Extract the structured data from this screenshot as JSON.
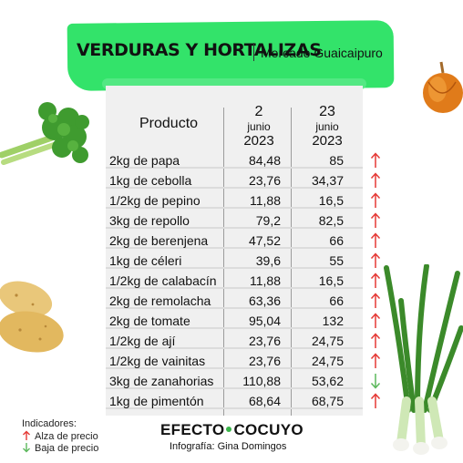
{
  "header": {
    "title": "VERDURAS Y HORTALIZAS",
    "subtitle": "Mercado Guaicaipuro"
  },
  "table": {
    "product_header": "Producto",
    "col1": {
      "day": "2",
      "month": "junio",
      "year": "2023"
    },
    "col2": {
      "day": "23",
      "month": "junio",
      "year": "2023"
    },
    "rows": [
      {
        "product": "2kg de papa",
        "v1": "84,48",
        "v2": "85",
        "trend": "up"
      },
      {
        "product": "1kg de cebolla",
        "v1": "23,76",
        "v2": "34,37",
        "trend": "up"
      },
      {
        "product": "1/2kg de pepino",
        "v1": "11,88",
        "v2": "16,5",
        "trend": "up"
      },
      {
        "product": "3kg de repollo",
        "v1": "79,2",
        "v2": "82,5",
        "trend": "up"
      },
      {
        "product": "2kg de berenjena",
        "v1": "47,52",
        "v2": "66",
        "trend": "up"
      },
      {
        "product": "1kg de céleri",
        "v1": "39,6",
        "v2": "55",
        "trend": "up"
      },
      {
        "product": "1/2kg de calabacín",
        "v1": "11,88",
        "v2": "16,5",
        "trend": "up"
      },
      {
        "product": "2kg de remolacha",
        "v1": "63,36",
        "v2": "66",
        "trend": "up"
      },
      {
        "product": "2kg de tomate",
        "v1": "95,04",
        "v2": "132",
        "trend": "up"
      },
      {
        "product": "1/2kg de ají",
        "v1": "23,76",
        "v2": "24,75",
        "trend": "up"
      },
      {
        "product": "1/2kg de vainitas",
        "v1": "23,76",
        "v2": "24,75",
        "trend": "up"
      },
      {
        "product": "3kg de zanahorias",
        "v1": "110,88",
        "v2": "53,62",
        "trend": "down"
      },
      {
        "product": "1kg de pimentón",
        "v1": "68,64",
        "v2": "68,75",
        "trend": "up"
      }
    ]
  },
  "legend": {
    "title": "Indicadores:",
    "up_label": "Alza de precio",
    "down_label": "Baja de precio"
  },
  "footer": {
    "brand_left": "EFECTO",
    "brand_right": "COCUYO",
    "credit": "Infografía: Gina Domingos"
  },
  "colors": {
    "brush_green": "#33e36a",
    "arrow_up": "#e53935",
    "arrow_down": "#5cb85c"
  }
}
